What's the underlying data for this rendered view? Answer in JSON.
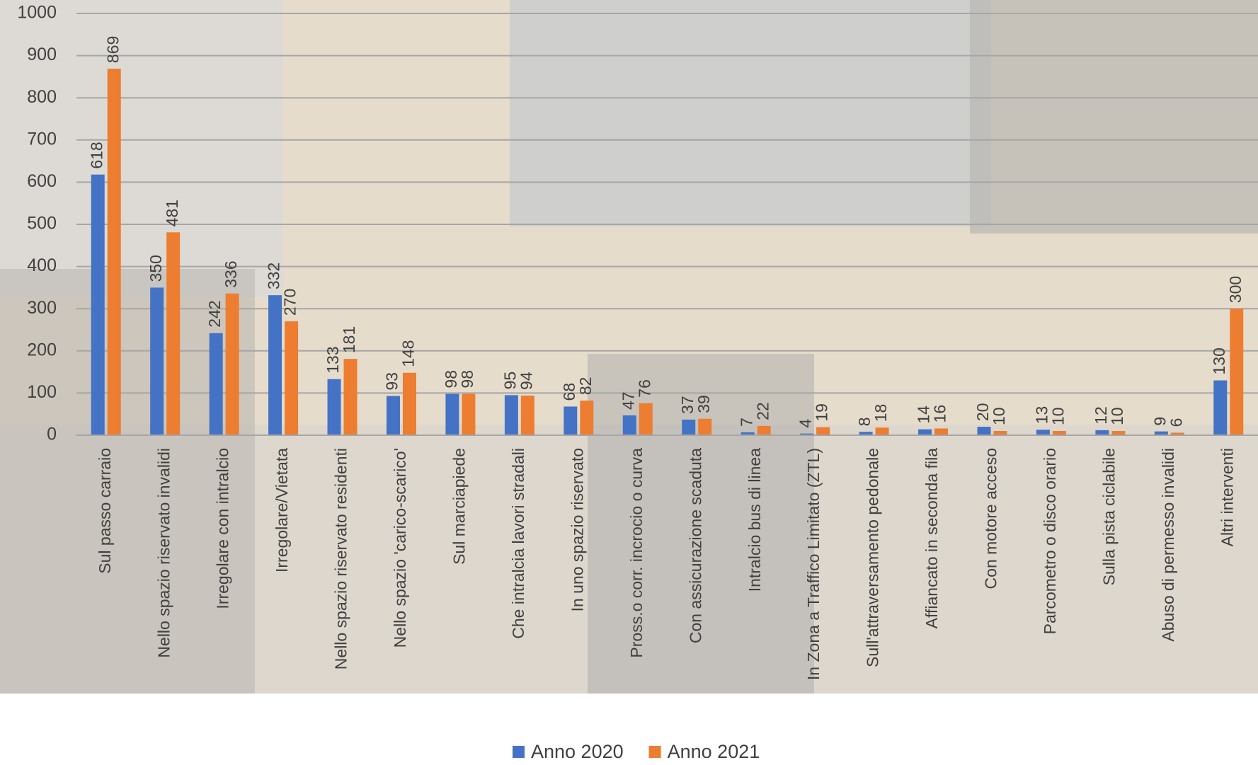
{
  "chart_data": {
    "type": "bar",
    "categories": [
      "Sul passo carraio",
      "Nello spazio riservato invalidi",
      "Irregolare con intralcio",
      "Irregolare/Vietata",
      "Nello spazio riservato residenti",
      "Nello spazio 'carico-scarico'",
      "Sul marciapiede",
      "Che intralcia lavori stradali",
      "In uno spazio riservato",
      "Pross.o corr. incrocio o curva",
      "Con assicurazione scaduta",
      "Intralcio bus di linea",
      "In Zona a Traffico Limitato (ZTL)",
      "Sull'attraversamento pedonale",
      "Affiancato in seconda fila",
      "Con motore acceso",
      "Parcometro o disco orario",
      "Sulla pista ciclabile",
      "Abuso di permesso invalidi",
      "Altri interventi"
    ],
    "series": [
      {
        "name": "Anno 2020",
        "color": "#4472c4",
        "values": [
          618,
          350,
          242,
          332,
          133,
          93,
          98,
          95,
          68,
          47,
          37,
          7,
          4,
          8,
          14,
          20,
          13,
          12,
          9,
          130
        ]
      },
      {
        "name": "Anno 2021",
        "color": "#ed7d31",
        "values": [
          869,
          481,
          336,
          270,
          181,
          148,
          98,
          94,
          82,
          76,
          39,
          22,
          19,
          18,
          16,
          10,
          10,
          10,
          6,
          300
        ]
      }
    ],
    "ylim": [
      0,
      1000
    ],
    "yticks": [
      0,
      100,
      200,
      300,
      400,
      500,
      600,
      700,
      800,
      900,
      1000
    ],
    "grid": true,
    "legend": "bottom"
  }
}
